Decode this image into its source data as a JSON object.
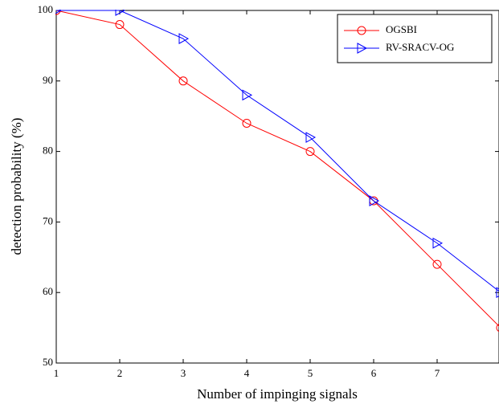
{
  "chart_data": {
    "type": "line",
    "x_label": "Number of impinging signals",
    "y_label": "detection probability (%)",
    "x": [
      1,
      2,
      3,
      4,
      5,
      6,
      7,
      8
    ],
    "series": [
      {
        "name": "OGSBI",
        "color": "#ff0000",
        "marker": "circle",
        "values": [
          100,
          98,
          90,
          84,
          80,
          73,
          64,
          55
        ]
      },
      {
        "name": "RV-SRACV-OG",
        "color": "#0000ff",
        "marker": "triangle-right",
        "values": [
          100,
          100,
          96,
          88,
          82,
          73,
          67,
          60
        ]
      }
    ],
    "xlim": [
      1,
      8
    ],
    "xticks": [
      1,
      2,
      3,
      4,
      5,
      6,
      7
    ],
    "ylim": [
      50,
      100
    ],
    "yticks": [
      50,
      60,
      70,
      80,
      90,
      100
    ],
    "legend": "upper right",
    "grid": false
  }
}
